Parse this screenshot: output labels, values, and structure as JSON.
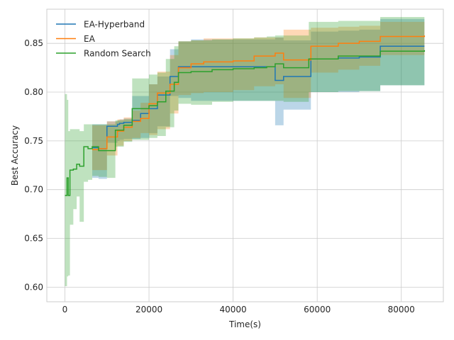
{
  "chart_data": {
    "type": "line",
    "xlabel": "Time(s)",
    "ylabel": "Best Accuracy",
    "xlim": [
      -4300,
      90000
    ],
    "ylim": [
      0.585,
      0.885
    ],
    "x_ticks": [
      0,
      20000,
      40000,
      60000,
      80000
    ],
    "x_tick_labels": [
      "0",
      "20000",
      "40000",
      "60000",
      "80000"
    ],
    "y_ticks": [
      0.6,
      0.65,
      0.7,
      0.75,
      0.8,
      0.85
    ],
    "y_tick_labels": [
      "0.60",
      "0.65",
      "0.70",
      "0.75",
      "0.80",
      "0.85"
    ],
    "grid": true,
    "legend_position": "top-left",
    "series": [
      {
        "name": "EA-Hyperband",
        "color": "#1f77b4",
        "x": [
          6500,
          8000,
          10000,
          12500,
          13000,
          14000,
          16000,
          18000,
          20000,
          22000,
          25000,
          27000,
          30000,
          33000,
          36000,
          40000,
          45000,
          50000,
          52000,
          58500,
          65000,
          70000,
          75000,
          85500
        ],
        "y": [
          0.743,
          0.742,
          0.765,
          0.767,
          0.768,
          0.769,
          0.771,
          0.778,
          0.783,
          0.797,
          0.816,
          0.826,
          0.826,
          0.826,
          0.826,
          0.826,
          0.826,
          0.812,
          0.816,
          0.834,
          0.835,
          0.836,
          0.847,
          0.847
        ],
        "lower": [
          0.712,
          0.711,
          0.748,
          0.75,
          0.751,
          0.752,
          0.752,
          0.753,
          0.758,
          0.765,
          0.796,
          0.794,
          0.791,
          0.791,
          0.791,
          0.791,
          0.791,
          0.766,
          0.782,
          0.8,
          0.8,
          0.801,
          0.807,
          0.807
        ],
        "upper": [
          0.767,
          0.767,
          0.77,
          0.771,
          0.772,
          0.773,
          0.796,
          0.796,
          0.808,
          0.816,
          0.844,
          0.852,
          0.854,
          0.854,
          0.854,
          0.854,
          0.854,
          0.856,
          0.853,
          0.862,
          0.863,
          0.864,
          0.875,
          0.875
        ]
      },
      {
        "name": "EA",
        "color": "#ff7f0e",
        "x": [
          6500,
          8000,
          10000,
          12500,
          14000,
          16000,
          18000,
          20000,
          22000,
          25000,
          27000,
          30000,
          33000,
          36000,
          40000,
          45000,
          50000,
          52000,
          58500,
          65000,
          70000,
          75000,
          85500
        ],
        "y": [
          0.741,
          0.742,
          0.754,
          0.76,
          0.764,
          0.77,
          0.773,
          0.788,
          0.799,
          0.808,
          0.825,
          0.829,
          0.831,
          0.831,
          0.832,
          0.837,
          0.84,
          0.833,
          0.847,
          0.85,
          0.852,
          0.857,
          0.858
        ],
        "lower": [
          0.72,
          0.72,
          0.735,
          0.745,
          0.75,
          0.753,
          0.758,
          0.756,
          0.762,
          0.778,
          0.797,
          0.799,
          0.8,
          0.8,
          0.802,
          0.806,
          0.808,
          0.794,
          0.82,
          0.823,
          0.827,
          0.838,
          0.84
        ],
        "upper": [
          0.766,
          0.766,
          0.77,
          0.772,
          0.774,
          0.781,
          0.789,
          0.808,
          0.821,
          0.838,
          0.852,
          0.853,
          0.855,
          0.855,
          0.855,
          0.856,
          0.856,
          0.864,
          0.866,
          0.867,
          0.868,
          0.872,
          0.872
        ]
      },
      {
        "name": "Random Search",
        "color": "#2ca02c",
        "x": [
          0,
          500,
          800,
          1200,
          2000,
          2800,
          3500,
          4500,
          5500,
          6500,
          8000,
          10000,
          12000,
          14000,
          16000,
          20000,
          22000,
          24000,
          26000,
          27000,
          30000,
          35000,
          40000,
          45000,
          48000,
          50000,
          52000,
          58000,
          65000,
          75000,
          85500
        ],
        "y": [
          0.694,
          0.712,
          0.694,
          0.72,
          0.721,
          0.726,
          0.724,
          0.744,
          0.742,
          0.744,
          0.74,
          0.74,
          0.761,
          0.766,
          0.783,
          0.786,
          0.79,
          0.801,
          0.81,
          0.82,
          0.821,
          0.823,
          0.824,
          0.825,
          0.826,
          0.829,
          0.825,
          0.834,
          0.837,
          0.842,
          0.843
        ],
        "lower": [
          0.601,
          0.611,
          0.612,
          0.664,
          0.68,
          0.693,
          0.667,
          0.708,
          0.71,
          0.714,
          0.713,
          0.712,
          0.744,
          0.749,
          0.751,
          0.753,
          0.755,
          0.764,
          0.781,
          0.788,
          0.787,
          0.79,
          0.791,
          0.791,
          0.791,
          0.791,
          0.79,
          0.8,
          0.801,
          0.807,
          0.807
        ],
        "upper": [
          0.798,
          0.792,
          0.76,
          0.762,
          0.762,
          0.762,
          0.76,
          0.767,
          0.767,
          0.767,
          0.767,
          0.767,
          0.771,
          0.772,
          0.814,
          0.818,
          0.82,
          0.834,
          0.847,
          0.852,
          0.853,
          0.854,
          0.855,
          0.856,
          0.857,
          0.858,
          0.858,
          0.872,
          0.873,
          0.877,
          0.877
        ]
      }
    ]
  }
}
